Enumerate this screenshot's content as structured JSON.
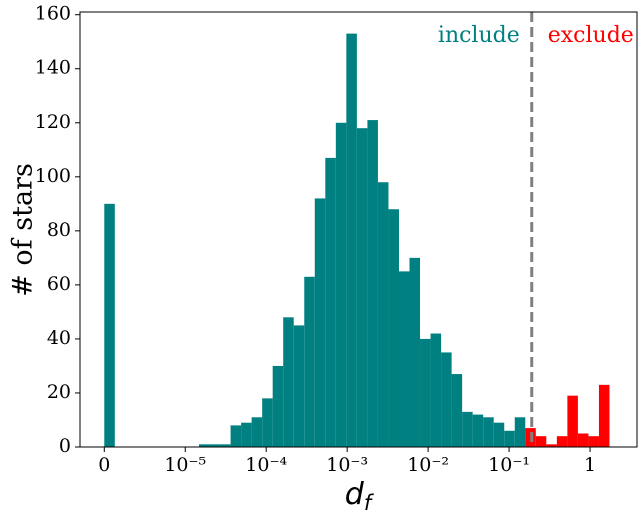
{
  "chart_data": {
    "type": "histogram",
    "xlabel": {
      "text": "d",
      "sub": "f"
    },
    "ylabel": "# of stars",
    "bins": [
      -6,
      -5.87,
      -5.74,
      -5.61,
      -5.48,
      -5.35,
      -5.22,
      -5.09,
      -4.96,
      -4.83,
      -4.7,
      -4.57,
      -4.44,
      -4.31,
      -4.18,
      -4.05,
      -3.92,
      -3.79,
      -3.66,
      -3.53,
      -3.4,
      -3.27,
      -3.14,
      -3.01,
      -2.88,
      -2.75,
      -2.62,
      -2.49,
      -2.36,
      -2.23,
      -2.1,
      -1.97,
      -1.84,
      -1.71,
      -1.58,
      -1.45,
      -1.32,
      -1.19,
      -1.06,
      -0.93,
      -0.8,
      -0.67,
      -0.54,
      -0.41,
      -0.28,
      -0.15,
      -0.02,
      0.11,
      0.24
    ],
    "series": [
      {
        "name": "include",
        "color": "#008080",
        "values": [
          90,
          0,
          0,
          0,
          0,
          0,
          0,
          0,
          0,
          1,
          1,
          1,
          8,
          9,
          11,
          18,
          30,
          48,
          45,
          63,
          92,
          107,
          120,
          153,
          118,
          121,
          98,
          88,
          65,
          70,
          40,
          42,
          35,
          27,
          13,
          12,
          11,
          9,
          6,
          11,
          0,
          0,
          0,
          0,
          0,
          0,
          0,
          0
        ]
      },
      {
        "name": "exclude",
        "color": "#ff0000",
        "values": [
          0,
          0,
          0,
          0,
          0,
          0,
          0,
          0,
          0,
          0,
          0,
          0,
          0,
          0,
          0,
          0,
          0,
          0,
          0,
          0,
          0,
          0,
          0,
          0,
          0,
          0,
          0,
          0,
          0,
          0,
          0,
          0,
          0,
          0,
          0,
          0,
          0,
          0,
          0,
          0,
          7,
          4,
          1,
          4,
          19,
          5,
          4,
          23
        ]
      }
    ],
    "threshold_x": -0.72,
    "xlim": [
      -6.3,
      0.58
    ],
    "ylim": [
      0,
      161
    ],
    "xticks": [
      {
        "value": -6,
        "label": "0"
      },
      {
        "value": -5,
        "label": "10⁻⁵"
      },
      {
        "value": -4,
        "label": "10⁻⁴"
      },
      {
        "value": -3,
        "label": "10⁻³"
      },
      {
        "value": -2,
        "label": "10⁻²"
      },
      {
        "value": -1,
        "label": "10⁻¹"
      },
      {
        "value": 0,
        "label": "1"
      }
    ],
    "yticks": [
      0,
      20,
      40,
      60,
      80,
      100,
      120,
      140,
      160
    ]
  }
}
